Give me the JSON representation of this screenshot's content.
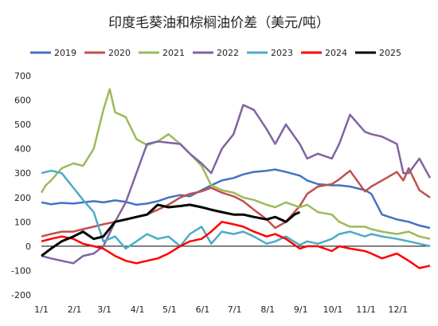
{
  "chart_data": {
    "type": "line",
    "title": "印度毛葵油和棕榈油价差（美元/吨）",
    "x_tick_labels": [
      "1/1",
      "2/1",
      "3/1",
      "4/1",
      "5/1",
      "6/1",
      "7/1",
      "8/1",
      "9/1",
      "10/1",
      "11/1",
      "12/1"
    ],
    "y_ticks": [
      -200,
      -100,
      0,
      100,
      200,
      300,
      400,
      500,
      600,
      700
    ],
    "ylim": [
      -200,
      700
    ],
    "x_unit": "day_of_year",
    "xlim": [
      1,
      365
    ],
    "legend_position": "top",
    "series": [
      {
        "name": "2019",
        "color": "#4472C4",
        "points": [
          [
            1,
            180
          ],
          [
            10,
            172
          ],
          [
            20,
            178
          ],
          [
            31,
            175
          ],
          [
            40,
            180
          ],
          [
            50,
            185
          ],
          [
            59,
            180
          ],
          [
            70,
            188
          ],
          [
            80,
            182
          ],
          [
            90,
            170
          ],
          [
            100,
            175
          ],
          [
            110,
            185
          ],
          [
            120,
            200
          ],
          [
            131,
            210
          ],
          [
            140,
            205
          ],
          [
            151,
            230
          ],
          [
            160,
            250
          ],
          [
            170,
            270
          ],
          [
            181,
            280
          ],
          [
            190,
            295
          ],
          [
            200,
            305
          ],
          [
            212,
            310
          ],
          [
            220,
            315
          ],
          [
            230,
            305
          ],
          [
            243,
            290
          ],
          [
            250,
            270
          ],
          [
            260,
            255
          ],
          [
            273,
            250
          ],
          [
            280,
            250
          ],
          [
            290,
            245
          ],
          [
            304,
            230
          ],
          [
            310,
            215
          ],
          [
            320,
            130
          ],
          [
            334,
            110
          ],
          [
            345,
            100
          ],
          [
            355,
            85
          ],
          [
            365,
            75
          ]
        ]
      },
      {
        "name": "2020",
        "color": "#C0504D",
        "points": [
          [
            1,
            40
          ],
          [
            10,
            50
          ],
          [
            20,
            60
          ],
          [
            31,
            60
          ],
          [
            40,
            70
          ],
          [
            50,
            80
          ],
          [
            59,
            90
          ],
          [
            70,
            100
          ],
          [
            80,
            110
          ],
          [
            90,
            120
          ],
          [
            100,
            130
          ],
          [
            110,
            150
          ],
          [
            120,
            170
          ],
          [
            131,
            200
          ],
          [
            140,
            215
          ],
          [
            151,
            225
          ],
          [
            160,
            240
          ],
          [
            170,
            220
          ],
          [
            181,
            205
          ],
          [
            190,
            185
          ],
          [
            200,
            150
          ],
          [
            212,
            110
          ],
          [
            220,
            75
          ],
          [
            230,
            100
          ],
          [
            243,
            165
          ],
          [
            250,
            215
          ],
          [
            260,
            245
          ],
          [
            273,
            255
          ],
          [
            280,
            275
          ],
          [
            290,
            310
          ],
          [
            304,
            225
          ],
          [
            310,
            245
          ],
          [
            320,
            270
          ],
          [
            334,
            305
          ],
          [
            340,
            270
          ],
          [
            345,
            320
          ],
          [
            355,
            230
          ],
          [
            365,
            200
          ]
        ]
      },
      {
        "name": "2021",
        "color": "#9BBB59",
        "points": [
          [
            1,
            220
          ],
          [
            5,
            250
          ],
          [
            10,
            270
          ],
          [
            20,
            320
          ],
          [
            31,
            340
          ],
          [
            40,
            330
          ],
          [
            50,
            400
          ],
          [
            59,
            560
          ],
          [
            65,
            645
          ],
          [
            70,
            550
          ],
          [
            80,
            530
          ],
          [
            90,
            440
          ],
          [
            100,
            415
          ],
          [
            110,
            430
          ],
          [
            120,
            460
          ],
          [
            131,
            420
          ],
          [
            140,
            380
          ],
          [
            151,
            330
          ],
          [
            160,
            250
          ],
          [
            170,
            230
          ],
          [
            181,
            220
          ],
          [
            190,
            200
          ],
          [
            200,
            190
          ],
          [
            212,
            170
          ],
          [
            220,
            160
          ],
          [
            230,
            180
          ],
          [
            243,
            160
          ],
          [
            250,
            170
          ],
          [
            260,
            140
          ],
          [
            273,
            130
          ],
          [
            280,
            100
          ],
          [
            290,
            80
          ],
          [
            304,
            80
          ],
          [
            310,
            70
          ],
          [
            320,
            60
          ],
          [
            334,
            50
          ],
          [
            345,
            60
          ],
          [
            355,
            40
          ],
          [
            365,
            30
          ]
        ]
      },
      {
        "name": "2022",
        "color": "#8064A2",
        "points": [
          [
            1,
            -40
          ],
          [
            10,
            -50
          ],
          [
            20,
            -60
          ],
          [
            31,
            -70
          ],
          [
            40,
            -40
          ],
          [
            50,
            -30
          ],
          [
            59,
            0
          ],
          [
            70,
            100
          ],
          [
            80,
            180
          ],
          [
            90,
            300
          ],
          [
            100,
            420
          ],
          [
            110,
            430
          ],
          [
            120,
            425
          ],
          [
            131,
            420
          ],
          [
            140,
            380
          ],
          [
            151,
            340
          ],
          [
            160,
            300
          ],
          [
            170,
            400
          ],
          [
            181,
            460
          ],
          [
            190,
            580
          ],
          [
            200,
            560
          ],
          [
            212,
            480
          ],
          [
            220,
            420
          ],
          [
            230,
            500
          ],
          [
            243,
            420
          ],
          [
            250,
            360
          ],
          [
            260,
            380
          ],
          [
            273,
            360
          ],
          [
            280,
            420
          ],
          [
            290,
            540
          ],
          [
            304,
            470
          ],
          [
            310,
            460
          ],
          [
            320,
            450
          ],
          [
            334,
            420
          ],
          [
            340,
            300
          ],
          [
            345,
            300
          ],
          [
            355,
            360
          ],
          [
            365,
            280
          ]
        ]
      },
      {
        "name": "2023",
        "color": "#4BACC6",
        "points": [
          [
            1,
            300
          ],
          [
            10,
            310
          ],
          [
            20,
            300
          ],
          [
            31,
            240
          ],
          [
            40,
            190
          ],
          [
            50,
            140
          ],
          [
            59,
            20
          ],
          [
            70,
            40
          ],
          [
            80,
            -10
          ],
          [
            90,
            20
          ],
          [
            100,
            50
          ],
          [
            110,
            30
          ],
          [
            120,
            40
          ],
          [
            131,
            0
          ],
          [
            140,
            50
          ],
          [
            151,
            80
          ],
          [
            160,
            10
          ],
          [
            170,
            60
          ],
          [
            181,
            50
          ],
          [
            190,
            60
          ],
          [
            200,
            40
          ],
          [
            212,
            10
          ],
          [
            220,
            20
          ],
          [
            230,
            40
          ],
          [
            243,
            5
          ],
          [
            250,
            20
          ],
          [
            260,
            10
          ],
          [
            273,
            30
          ],
          [
            280,
            50
          ],
          [
            290,
            60
          ],
          [
            304,
            40
          ],
          [
            310,
            50
          ],
          [
            320,
            40
          ],
          [
            334,
            30
          ],
          [
            345,
            20
          ],
          [
            355,
            10
          ],
          [
            365,
            0
          ]
        ]
      },
      {
        "name": "2024",
        "color": "#FF0000",
        "points": [
          [
            1,
            20
          ],
          [
            10,
            30
          ],
          [
            20,
            40
          ],
          [
            31,
            30
          ],
          [
            40,
            10
          ],
          [
            50,
            0
          ],
          [
            59,
            -10
          ],
          [
            70,
            -40
          ],
          [
            80,
            -60
          ],
          [
            90,
            -70
          ],
          [
            100,
            -60
          ],
          [
            110,
            -50
          ],
          [
            120,
            -30
          ],
          [
            131,
            0
          ],
          [
            140,
            20
          ],
          [
            151,
            30
          ],
          [
            160,
            60
          ],
          [
            170,
            100
          ],
          [
            181,
            90
          ],
          [
            190,
            80
          ],
          [
            200,
            60
          ],
          [
            212,
            40
          ],
          [
            220,
            50
          ],
          [
            230,
            30
          ],
          [
            243,
            -10
          ],
          [
            250,
            0
          ],
          [
            260,
            0
          ],
          [
            273,
            -20
          ],
          [
            280,
            0
          ],
          [
            290,
            -10
          ],
          [
            304,
            -20
          ],
          [
            310,
            -30
          ],
          [
            320,
            -50
          ],
          [
            334,
            -30
          ],
          [
            345,
            -60
          ],
          [
            355,
            -90
          ],
          [
            365,
            -80
          ]
        ]
      },
      {
        "name": "2025",
        "color": "#000000",
        "points": [
          [
            1,
            -40
          ],
          [
            10,
            -10
          ],
          [
            20,
            20
          ],
          [
            31,
            40
          ],
          [
            40,
            60
          ],
          [
            50,
            30
          ],
          [
            59,
            40
          ],
          [
            70,
            100
          ],
          [
            80,
            110
          ],
          [
            90,
            120
          ],
          [
            100,
            130
          ],
          [
            110,
            170
          ],
          [
            120,
            160
          ],
          [
            131,
            165
          ],
          [
            140,
            170
          ],
          [
            151,
            160
          ],
          [
            160,
            150
          ],
          [
            170,
            140
          ],
          [
            181,
            130
          ],
          [
            190,
            130
          ],
          [
            200,
            120
          ],
          [
            212,
            110
          ],
          [
            220,
            120
          ],
          [
            230,
            100
          ],
          [
            238,
            130
          ],
          [
            243,
            140
          ]
        ]
      }
    ]
  }
}
